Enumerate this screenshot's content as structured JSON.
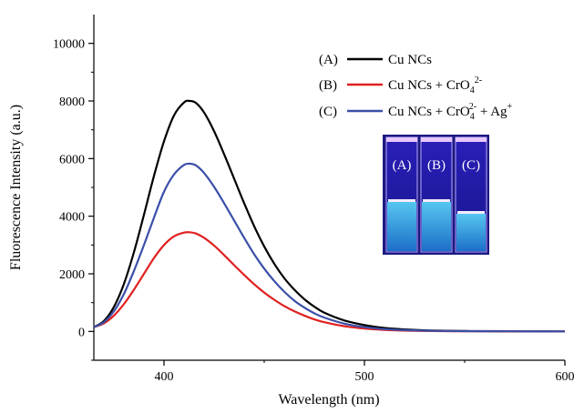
{
  "chart_data": {
    "type": "line",
    "xlabel": "Wavelength (nm)",
    "ylabel": "Fluorescence Intensity (a.u.)",
    "xlim": [
      365,
      600
    ],
    "ylim": [
      -1000,
      11000
    ],
    "xticks": [
      400,
      500,
      600
    ],
    "yticks": [
      0,
      2000,
      4000,
      6000,
      8000,
      10000
    ],
    "grid": false,
    "legend_position": "top-right",
    "series": [
      {
        "name": "Cu NCs",
        "tag": "(A)",
        "color": "#000000",
        "x": [
          365,
          370,
          375,
          380,
          385,
          390,
          395,
          400,
          405,
          410,
          413,
          416,
          420,
          425,
          430,
          435,
          440,
          445,
          450,
          455,
          460,
          465,
          470,
          475,
          480,
          490,
          500,
          510,
          520,
          530,
          540,
          550,
          560,
          580,
          600
        ],
        "y": [
          150,
          360,
          850,
          1650,
          2750,
          4050,
          5400,
          6600,
          7500,
          7950,
          8000,
          7930,
          7600,
          6950,
          6150,
          5300,
          4450,
          3650,
          2950,
          2350,
          1850,
          1450,
          1120,
          860,
          650,
          380,
          220,
          120,
          70,
          40,
          25,
          15,
          10,
          5,
          0
        ]
      },
      {
        "name": "Cu NCs + CrO",
        "name_sup": "2-",
        "name_sub": "4",
        "tag": "(B)",
        "color": "#e02020",
        "x": [
          365,
          370,
          375,
          380,
          385,
          390,
          395,
          400,
          405,
          410,
          413,
          416,
          420,
          425,
          430,
          435,
          440,
          445,
          450,
          455,
          460,
          465,
          470,
          475,
          480,
          490,
          500,
          510,
          520,
          530,
          540,
          550,
          560,
          580,
          600
        ],
        "y": [
          150,
          280,
          550,
          950,
          1450,
          2000,
          2550,
          3000,
          3300,
          3430,
          3440,
          3400,
          3250,
          2980,
          2650,
          2300,
          1960,
          1640,
          1350,
          1100,
          880,
          700,
          550,
          420,
          320,
          180,
          100,
          55,
          30,
          18,
          10,
          6,
          4,
          2,
          0
        ]
      },
      {
        "name": "Cu NCs + CrO",
        "name_sup": "2-",
        "name_sub": "4",
        "name_tail": " + Ag",
        "name_tail_sup": "+",
        "tag": "(C)",
        "color": "#3a4fa8",
        "x": [
          365,
          370,
          375,
          380,
          385,
          390,
          395,
          400,
          405,
          410,
          413,
          416,
          420,
          425,
          430,
          435,
          440,
          445,
          450,
          455,
          460,
          465,
          470,
          475,
          480,
          490,
          500,
          510,
          520,
          530,
          540,
          550,
          560,
          580,
          600
        ],
        "y": [
          150,
          320,
          700,
          1300,
          2100,
          3000,
          3950,
          4850,
          5450,
          5780,
          5820,
          5760,
          5500,
          5020,
          4450,
          3850,
          3250,
          2680,
          2180,
          1750,
          1380,
          1070,
          830,
          630,
          480,
          270,
          150,
          80,
          45,
          27,
          16,
          10,
          6,
          3,
          0
        ]
      }
    ]
  },
  "inset_photo": {
    "vial_labels": [
      "(A)",
      "(B)",
      "(C)"
    ],
    "colors": {
      "glow_top": "#e6c8ff",
      "tube": "#1a1aa8",
      "liquid": "#2aa0e0",
      "frame": "#221c8a"
    }
  }
}
